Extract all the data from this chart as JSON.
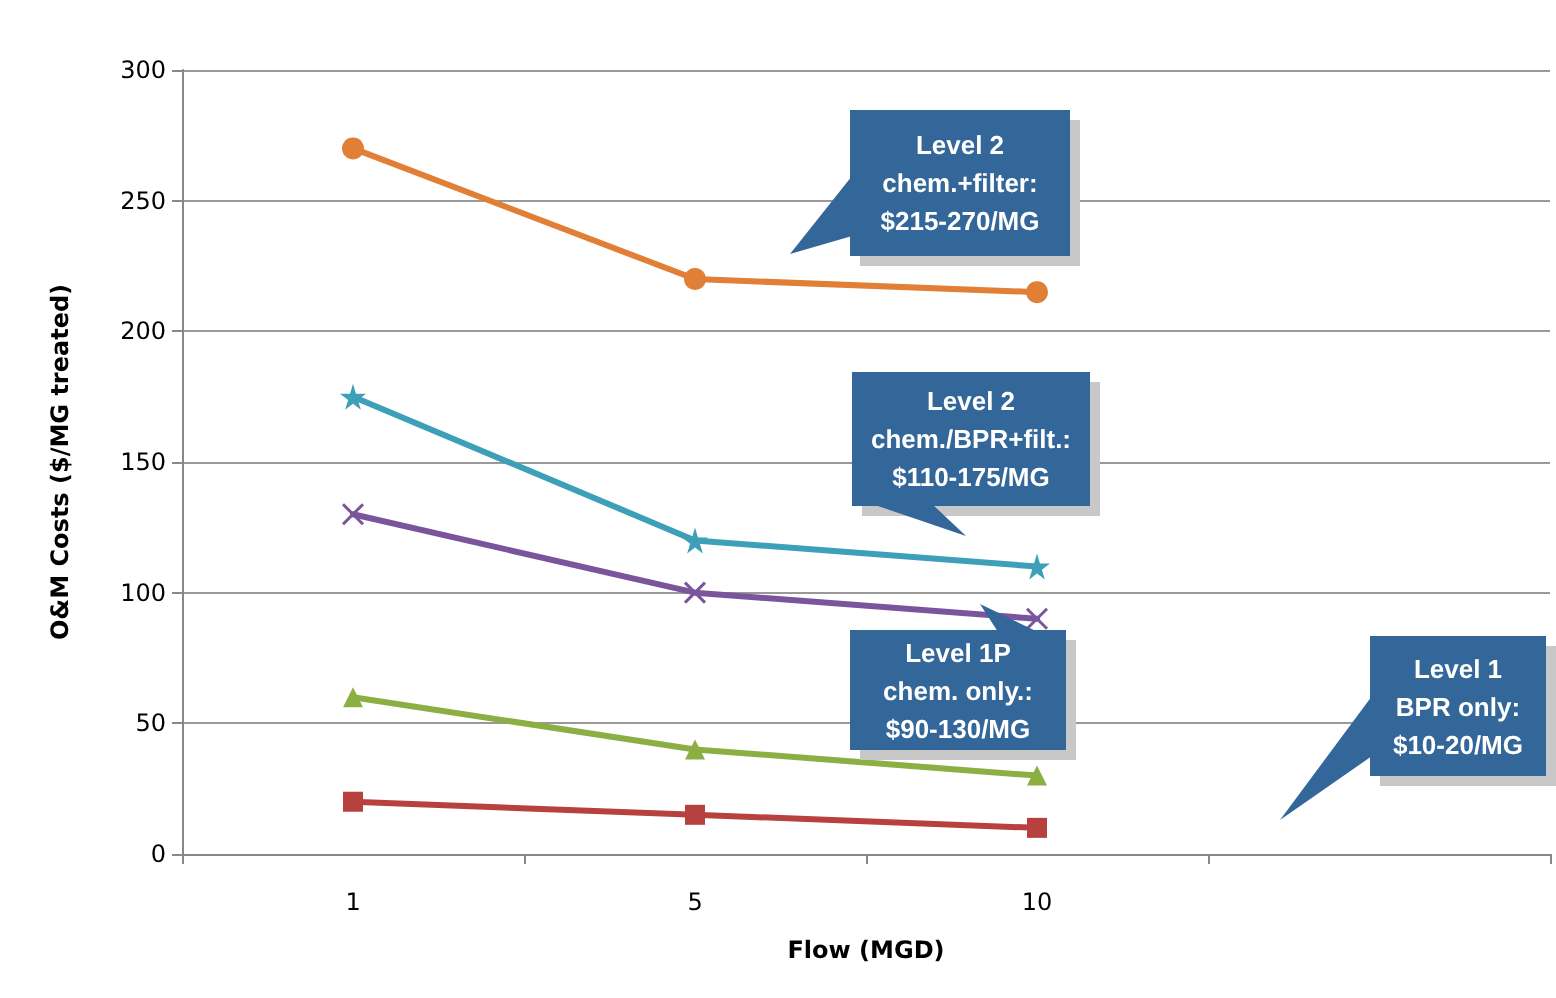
{
  "chart_data": {
    "type": "line",
    "xlabel": "Flow (MGD)",
    "ylabel": "O&M Costs ($/MG treated)",
    "categories": [
      "1",
      "5",
      "10",
      null
    ],
    "ylim": [
      0,
      300
    ],
    "yticks": [
      0,
      50,
      100,
      150,
      200,
      250,
      300
    ],
    "grid": "y",
    "series": [
      {
        "color": "#e07f35",
        "marker": "circle",
        "values": [
          270,
          220,
          215,
          null
        ]
      },
      {
        "color": "#3e9fb8",
        "marker": "star",
        "values": [
          175,
          120,
          110,
          null
        ]
      },
      {
        "color": "#7a559c",
        "marker": "cross",
        "values": [
          130,
          100,
          90,
          null
        ]
      },
      {
        "color": "#8caf43",
        "marker": "triangle",
        "values": [
          60,
          40,
          30,
          null
        ]
      },
      {
        "color": "#b6413e",
        "marker": "square",
        "values": [
          20,
          15,
          10,
          null
        ]
      }
    ],
    "annotations": [
      "Level 2\nchem.+filter:\n$215-270/MG",
      "Level 2\nchem./BPR+filt.:\n$110-175/MG",
      "Level 1P\nchem. only.:\n$90-130/MG",
      "Level 1\nBPR only:\n$10-20/MG"
    ]
  }
}
